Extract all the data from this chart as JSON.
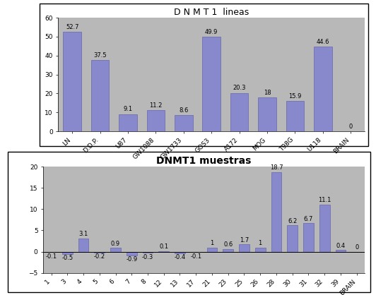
{
  "chart1": {
    "title": "D N M T 1  lineas",
    "categories": [
      "LN",
      "D.D.P.",
      "U87",
      "GW1088",
      "GW1733",
      "GOS3",
      "A172",
      "MOG",
      "T98G",
      "U118",
      "BRAIN"
    ],
    "values": [
      52.7,
      37.5,
      9.1,
      11.2,
      8.6,
      49.9,
      20.3,
      18,
      15.9,
      44.6,
      0
    ],
    "bar_color": "#8888cc",
    "bg_color": "#b8b8b8",
    "ylim": [
      0,
      60
    ],
    "yticks": [
      0,
      10,
      20,
      30,
      40,
      50,
      60
    ]
  },
  "chart2": {
    "title": "DNMT1 muestras",
    "categories": [
      "1",
      "3",
      "4",
      "5",
      "6",
      "7",
      "8",
      "12",
      "13",
      "17",
      "21",
      "23",
      "25",
      "26",
      "28",
      "30",
      "31",
      "32",
      "39",
      "BRAIN"
    ],
    "values": [
      -0.1,
      -0.5,
      3.1,
      -0.2,
      0.9,
      -0.9,
      -0.3,
      0.1,
      -0.4,
      -0.1,
      1,
      0.6,
      1.7,
      1,
      18.7,
      6.2,
      6.7,
      11.1,
      0.4,
      0
    ],
    "bar_color": "#8888cc",
    "bg_color": "#b8b8b8",
    "ylim": [
      -5,
      20
    ],
    "yticks": [
      -5,
      0,
      5,
      10,
      15,
      20
    ]
  },
  "fig_bg": "#ffffff",
  "box_bg": "#ffffff",
  "label_fontsize": 6.5,
  "title_fontsize1": 9,
  "title_fontsize2": 10,
  "value_fontsize": 6
}
